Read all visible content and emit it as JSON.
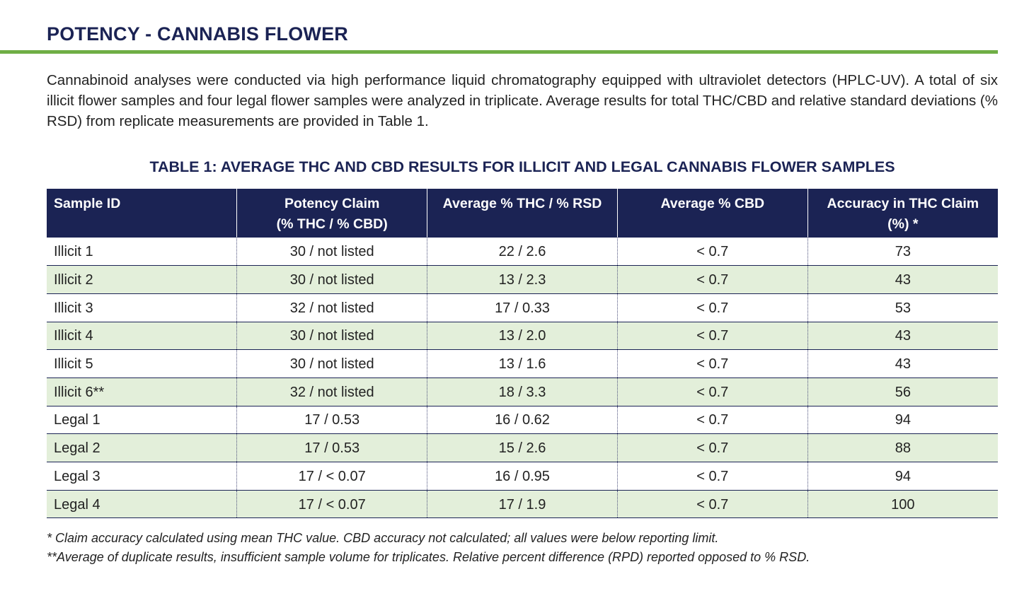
{
  "section_title": "POTENCY - CANNABIS FLOWER",
  "intro": "Cannabinoid analyses were conducted via high performance liquid chromatography equipped with ultraviolet detectors (HPLC-UV). A total of six illicit flower samples and four legal flower samples were analyzed in triplicate. Average results for total THC/CBD and relative standard deviations (% RSD) from replicate measurements are provided in Table 1.",
  "table_title": "TABLE 1:  AVERAGE THC AND CBD RESULTS FOR ILLICIT AND LEGAL CANNABIS FLOWER SAMPLES",
  "table": {
    "headers": [
      [
        "Sample ID"
      ],
      [
        "Potency Claim",
        "(% THC / % CBD)"
      ],
      [
        "Average % THC / % RSD"
      ],
      [
        "Average % CBD"
      ],
      [
        "Accuracy in THC Claim",
        "(%) *"
      ]
    ],
    "rows": [
      [
        "Illicit 1",
        "30 / not listed",
        "22 / 2.6",
        "< 0.7",
        "73"
      ],
      [
        "Illicit 2",
        "30 / not listed",
        "13 / 2.3",
        "< 0.7",
        "43"
      ],
      [
        "Illicit 3",
        "32 / not listed",
        "17 / 0.33",
        "< 0.7",
        "53"
      ],
      [
        "Illicit 4",
        "30 / not listed",
        "13 / 2.0",
        "< 0.7",
        "43"
      ],
      [
        "Illicit 5",
        "30 / not listed",
        "13 / 1.6",
        "< 0.7",
        "43"
      ],
      [
        "Illicit 6**",
        "32 / not listed",
        "18 / 3.3",
        "< 0.7",
        "56"
      ],
      [
        "Legal 1",
        "17 / 0.53",
        "16 / 0.62",
        "< 0.7",
        "94"
      ],
      [
        "Legal 2",
        "17 / 0.53",
        "15 / 2.6",
        "< 0.7",
        "88"
      ],
      [
        "Legal 3",
        "17 / < 0.07",
        "16 / 0.95",
        "< 0.7",
        "94"
      ],
      [
        "Legal 4",
        "17 / < 0.07",
        "17 / 1.9",
        "< 0.7",
        "100"
      ]
    ]
  },
  "footnotes": [
    "* Claim accuracy calculated using mean THC value. CBD accuracy not calculated; all values were below reporting limit.",
    "**Average of duplicate results, insufficient sample volume for triplicates. Relative percent difference (RPD) reported opposed to % RSD."
  ],
  "colors": {
    "header_navy": "#1b2354",
    "rule_green": "#6fae45",
    "row_shade": "#e3efda"
  }
}
